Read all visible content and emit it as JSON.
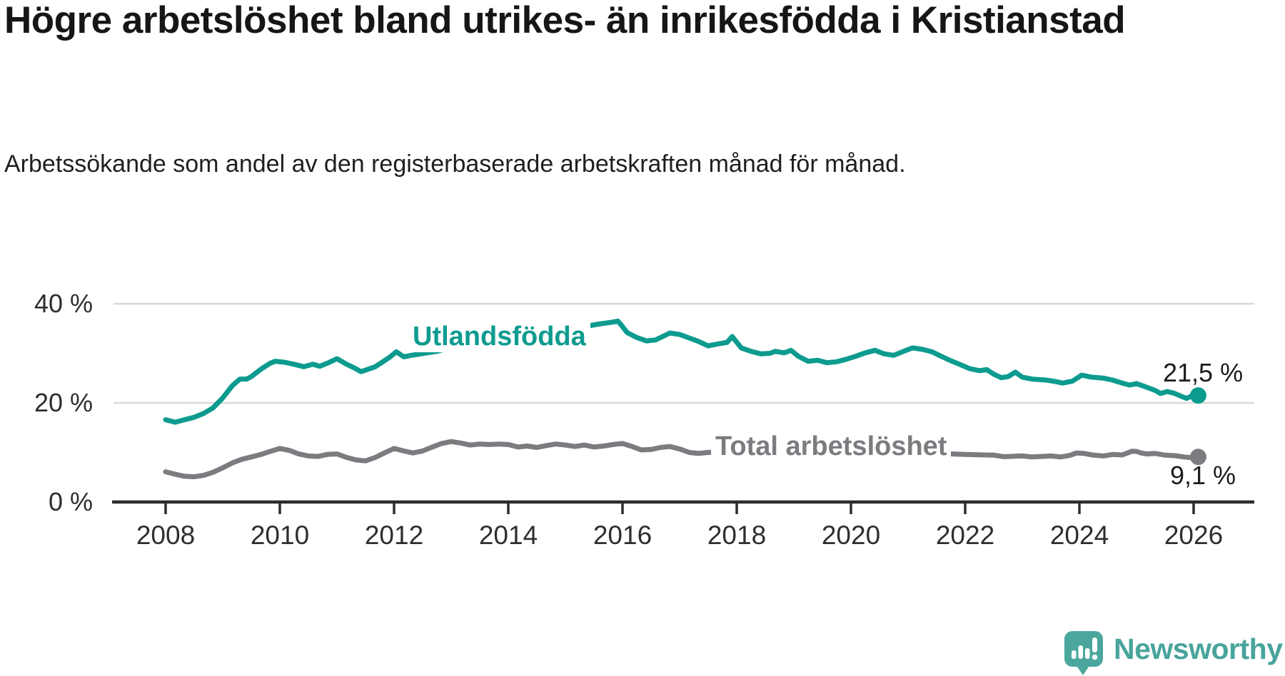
{
  "header": {
    "title": "Högre arbetslöshet bland utrikes- än inrikesfödda i Kristianstad",
    "subtitle": "Arbetssökande som andel av den registerbaserade arbetskraften månad för månad."
  },
  "footer": {
    "brand": "Newsworthy"
  },
  "chart_data": {
    "type": "line",
    "title": "Högre arbetslöshet bland utrikes- än inrikesfödda i Kristianstad",
    "xlabel": "",
    "ylabel": "",
    "x_axis": {
      "ticks": [
        2008,
        2010,
        2012,
        2014,
        2016,
        2018,
        2020,
        2022,
        2024,
        2026
      ],
      "range": [
        2007.1,
        2027.1
      ]
    },
    "y_axis": {
      "tick_values": [
        0,
        20,
        40
      ],
      "tick_labels": [
        "0 %",
        "20 %",
        "40 %"
      ],
      "range": [
        0,
        43
      ]
    },
    "grid": "horizontal",
    "legend_position": "inline-labels",
    "colors": {
      "axis": "#2d2d2d",
      "grid": "#d9d9d9",
      "value_text": "#1c1c1c"
    },
    "series": [
      {
        "name": "Utlandsfödda",
        "color": "#0d9b8f",
        "end_label": "21,5 %",
        "end_value": 21.5,
        "points": [
          [
            2008.0,
            16.6
          ],
          [
            2008.17,
            16.1
          ],
          [
            2008.33,
            16.6
          ],
          [
            2008.5,
            17.1
          ],
          [
            2008.67,
            17.9
          ],
          [
            2008.83,
            19.0
          ],
          [
            2009.0,
            21.0
          ],
          [
            2009.17,
            23.5
          ],
          [
            2009.3,
            24.8
          ],
          [
            2009.42,
            24.8
          ],
          [
            2009.5,
            25.3
          ],
          [
            2009.67,
            26.8
          ],
          [
            2009.83,
            28.0
          ],
          [
            2009.92,
            28.4
          ],
          [
            2010.08,
            28.2
          ],
          [
            2010.25,
            27.8
          ],
          [
            2010.42,
            27.3
          ],
          [
            2010.58,
            27.8
          ],
          [
            2010.7,
            27.4
          ],
          [
            2010.83,
            28.0
          ],
          [
            2011.0,
            28.9
          ],
          [
            2011.17,
            27.8
          ],
          [
            2011.33,
            26.9
          ],
          [
            2011.42,
            26.3
          ],
          [
            2011.5,
            26.6
          ],
          [
            2011.67,
            27.3
          ],
          [
            2011.83,
            28.5
          ],
          [
            2011.92,
            29.2
          ],
          [
            2012.04,
            30.3
          ],
          [
            2012.17,
            29.3
          ],
          [
            2012.3,
            29.6
          ],
          [
            2012.42,
            29.8
          ],
          [
            2012.58,
            30.1
          ],
          [
            2012.75,
            30.4
          ],
          [
            2013.0,
            31.2
          ],
          [
            2013.33,
            31.8
          ],
          [
            2013.67,
            32.2
          ],
          [
            2014.0,
            32.7
          ],
          [
            2014.33,
            33.2
          ],
          [
            2014.67,
            33.8
          ],
          [
            2015.0,
            34.4
          ],
          [
            2015.33,
            35.4
          ],
          [
            2015.58,
            35.9
          ],
          [
            2015.83,
            36.3
          ],
          [
            2015.92,
            36.5
          ],
          [
            2016.0,
            35.4
          ],
          [
            2016.08,
            34.2
          ],
          [
            2016.25,
            33.2
          ],
          [
            2016.42,
            32.5
          ],
          [
            2016.58,
            32.7
          ],
          [
            2016.83,
            34.1
          ],
          [
            2017.0,
            33.8
          ],
          [
            2017.17,
            33.1
          ],
          [
            2017.33,
            32.4
          ],
          [
            2017.5,
            31.5
          ],
          [
            2017.67,
            31.9
          ],
          [
            2017.83,
            32.2
          ],
          [
            2017.92,
            33.4
          ],
          [
            2018.08,
            31.1
          ],
          [
            2018.25,
            30.4
          ],
          [
            2018.42,
            29.9
          ],
          [
            2018.58,
            30.0
          ],
          [
            2018.67,
            30.4
          ],
          [
            2018.83,
            30.1
          ],
          [
            2018.95,
            30.6
          ],
          [
            2019.08,
            29.4
          ],
          [
            2019.25,
            28.4
          ],
          [
            2019.42,
            28.6
          ],
          [
            2019.58,
            28.1
          ],
          [
            2019.75,
            28.3
          ],
          [
            2019.92,
            28.8
          ],
          [
            2020.08,
            29.4
          ],
          [
            2020.25,
            30.1
          ],
          [
            2020.42,
            30.6
          ],
          [
            2020.58,
            29.9
          ],
          [
            2020.75,
            29.6
          ],
          [
            2020.92,
            30.4
          ],
          [
            2021.08,
            31.1
          ],
          [
            2021.25,
            30.8
          ],
          [
            2021.42,
            30.3
          ],
          [
            2021.58,
            29.4
          ],
          [
            2021.75,
            28.5
          ],
          [
            2021.92,
            27.7
          ],
          [
            2022.08,
            26.9
          ],
          [
            2022.25,
            26.5
          ],
          [
            2022.38,
            26.7
          ],
          [
            2022.5,
            25.8
          ],
          [
            2022.63,
            25.1
          ],
          [
            2022.75,
            25.3
          ],
          [
            2022.88,
            26.2
          ],
          [
            2023.0,
            25.2
          ],
          [
            2023.17,
            24.8
          ],
          [
            2023.42,
            24.6
          ],
          [
            2023.58,
            24.3
          ],
          [
            2023.71,
            24.0
          ],
          [
            2023.88,
            24.4
          ],
          [
            2024.04,
            25.6
          ],
          [
            2024.21,
            25.2
          ],
          [
            2024.42,
            25.0
          ],
          [
            2024.58,
            24.6
          ],
          [
            2024.75,
            24.0
          ],
          [
            2024.88,
            23.6
          ],
          [
            2025.0,
            23.9
          ],
          [
            2025.17,
            23.2
          ],
          [
            2025.33,
            22.5
          ],
          [
            2025.42,
            21.9
          ],
          [
            2025.54,
            22.3
          ],
          [
            2025.67,
            21.9
          ],
          [
            2025.79,
            21.3
          ],
          [
            2025.88,
            20.9
          ],
          [
            2025.96,
            21.4
          ],
          [
            2026.08,
            21.5
          ]
        ]
      },
      {
        "name": "Total arbetslöshet",
        "color": "#7b7b80",
        "end_label": "9,1 %",
        "end_value": 9.1,
        "points": [
          [
            2008.0,
            6.1
          ],
          [
            2008.17,
            5.6
          ],
          [
            2008.33,
            5.2
          ],
          [
            2008.5,
            5.1
          ],
          [
            2008.67,
            5.4
          ],
          [
            2008.83,
            6.0
          ],
          [
            2009.0,
            6.9
          ],
          [
            2009.17,
            7.9
          ],
          [
            2009.33,
            8.6
          ],
          [
            2009.5,
            9.1
          ],
          [
            2009.67,
            9.6
          ],
          [
            2009.83,
            10.2
          ],
          [
            2010.0,
            10.8
          ],
          [
            2010.17,
            10.4
          ],
          [
            2010.33,
            9.7
          ],
          [
            2010.5,
            9.3
          ],
          [
            2010.67,
            9.2
          ],
          [
            2010.83,
            9.6
          ],
          [
            2011.0,
            9.7
          ],
          [
            2011.17,
            9.0
          ],
          [
            2011.33,
            8.5
          ],
          [
            2011.5,
            8.3
          ],
          [
            2011.67,
            9.0
          ],
          [
            2011.83,
            9.9
          ],
          [
            2012.0,
            10.8
          ],
          [
            2012.17,
            10.3
          ],
          [
            2012.33,
            9.9
          ],
          [
            2012.5,
            10.3
          ],
          [
            2012.67,
            11.1
          ],
          [
            2012.83,
            11.8
          ],
          [
            2013.0,
            12.2
          ],
          [
            2013.17,
            11.9
          ],
          [
            2013.33,
            11.5
          ],
          [
            2013.5,
            11.7
          ],
          [
            2013.67,
            11.6
          ],
          [
            2013.83,
            11.7
          ],
          [
            2014.0,
            11.6
          ],
          [
            2014.17,
            11.1
          ],
          [
            2014.33,
            11.3
          ],
          [
            2014.5,
            11.0
          ],
          [
            2014.67,
            11.4
          ],
          [
            2014.83,
            11.7
          ],
          [
            2015.0,
            11.5
          ],
          [
            2015.17,
            11.2
          ],
          [
            2015.33,
            11.5
          ],
          [
            2015.5,
            11.1
          ],
          [
            2015.67,
            11.3
          ],
          [
            2015.83,
            11.6
          ],
          [
            2016.0,
            11.8
          ],
          [
            2016.17,
            11.2
          ],
          [
            2016.33,
            10.5
          ],
          [
            2016.5,
            10.6
          ],
          [
            2016.67,
            11.0
          ],
          [
            2016.83,
            11.2
          ],
          [
            2017.0,
            10.7
          ],
          [
            2017.17,
            10.0
          ],
          [
            2017.33,
            9.8
          ],
          [
            2017.5,
            10.0
          ],
          [
            2017.75,
            10.1
          ],
          [
            2018.0,
            10.0
          ],
          [
            2018.5,
            9.9
          ],
          [
            2019.0,
            9.8
          ],
          [
            2019.5,
            9.7
          ],
          [
            2020.0,
            10.1
          ],
          [
            2020.33,
            10.4
          ],
          [
            2020.67,
            10.2
          ],
          [
            2021.0,
            10.0
          ],
          [
            2021.5,
            9.8
          ],
          [
            2022.0,
            9.6
          ],
          [
            2022.33,
            9.5
          ],
          [
            2022.5,
            9.45
          ],
          [
            2022.67,
            9.15
          ],
          [
            2023.0,
            9.3
          ],
          [
            2023.17,
            9.1
          ],
          [
            2023.33,
            9.2
          ],
          [
            2023.5,
            9.3
          ],
          [
            2023.67,
            9.1
          ],
          [
            2023.83,
            9.4
          ],
          [
            2023.95,
            9.9
          ],
          [
            2024.08,
            9.8
          ],
          [
            2024.25,
            9.45
          ],
          [
            2024.42,
            9.3
          ],
          [
            2024.58,
            9.6
          ],
          [
            2024.75,
            9.5
          ],
          [
            2024.92,
            10.25
          ],
          [
            2025.0,
            10.2
          ],
          [
            2025.08,
            9.9
          ],
          [
            2025.17,
            9.7
          ],
          [
            2025.33,
            9.8
          ],
          [
            2025.5,
            9.45
          ],
          [
            2025.67,
            9.35
          ],
          [
            2025.83,
            9.1
          ],
          [
            2025.92,
            9.0
          ],
          [
            2026.08,
            9.1
          ]
        ]
      }
    ]
  }
}
